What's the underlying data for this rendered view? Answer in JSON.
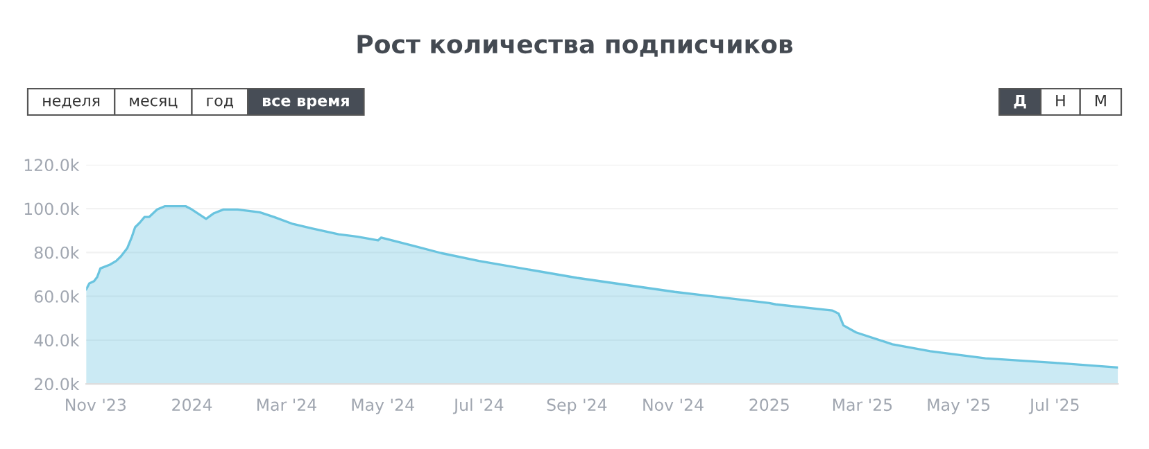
{
  "chart_data": {
    "type": "area",
    "title": "Рост количества подписчиков",
    "annotations": [
      "неделя",
      "месяц",
      "год",
      "все время",
      "Д",
      "Н",
      "М"
    ],
    "x": [
      "2023-10-26",
      "2023-10-28",
      "2023-10-31",
      "2023-11-02",
      "2023-11-04",
      "2023-11-10",
      "2023-11-14",
      "2023-11-17",
      "2023-11-21",
      "2023-11-24",
      "2023-11-26",
      "2023-11-29",
      "2023-12-02",
      "2023-12-05",
      "2023-12-10",
      "2023-12-15",
      "2023-12-28",
      "2024-01-01",
      "2024-01-10",
      "2024-01-15",
      "2024-01-21",
      "2024-01-30",
      "2024-02-13",
      "2024-02-22",
      "2024-03-05",
      "2024-03-17",
      "2024-04-03",
      "2024-04-15",
      "2024-04-28",
      "2024-04-30",
      "2024-05-09",
      "2024-05-21",
      "2024-06-07",
      "2024-07-01",
      "2024-09-01",
      "2024-11-02",
      "2025-01-01",
      "2025-01-05",
      "2025-02-10",
      "2025-02-14",
      "2025-02-17",
      "2025-02-25",
      "2025-03-20",
      "2025-04-13",
      "2025-05-18",
      "2025-07-01",
      "2025-08-10"
    ],
    "series": [
      {
        "color": "#6ac4df",
        "values": [
          63100,
          65900,
          66900,
          68800,
          72700,
          74400,
          76100,
          78200,
          81900,
          87200,
          91500,
          93600,
          96200,
          96200,
          99600,
          101100,
          101100,
          99600,
          95300,
          97900,
          99600,
          99600,
          98300,
          96200,
          93000,
          91000,
          88300,
          87200,
          85500,
          86800,
          85100,
          82900,
          79700,
          76100,
          68400,
          62000,
          56900,
          56300,
          53500,
          52000,
          46700,
          43500,
          38100,
          34900,
          31700,
          29600,
          27500
        ]
      }
    ],
    "xlim": [
      "2023-10-26",
      "2025-08-10"
    ],
    "xticks": [
      {
        "value": "2023-11-01",
        "label": "Nov '23"
      },
      {
        "value": "2024-01-01",
        "label": "2024"
      },
      {
        "value": "2024-03-01",
        "label": "Mar '24"
      },
      {
        "value": "2024-05-01",
        "label": "May '24"
      },
      {
        "value": "2024-07-01",
        "label": "Jul '24"
      },
      {
        "value": "2024-09-01",
        "label": "Sep '24"
      },
      {
        "value": "2024-11-01",
        "label": "Nov '24"
      },
      {
        "value": "2025-01-01",
        "label": "2025"
      },
      {
        "value": "2025-03-01",
        "label": "Mar '25"
      },
      {
        "value": "2025-05-01",
        "label": "May '25"
      },
      {
        "value": "2025-07-01",
        "label": "Jul '25"
      }
    ],
    "ylim": [
      20000,
      120000
    ],
    "yticks": [
      {
        "value": 20000,
        "label": "20.0k"
      },
      {
        "value": 40000,
        "label": "40.0k"
      },
      {
        "value": 60000,
        "label": "60.0k"
      },
      {
        "value": 80000,
        "label": "80.0k"
      },
      {
        "value": 100000,
        "label": "100.0k"
      },
      {
        "value": 120000,
        "label": "120.0k"
      }
    ],
    "grid": "y",
    "legend": false
  }
}
